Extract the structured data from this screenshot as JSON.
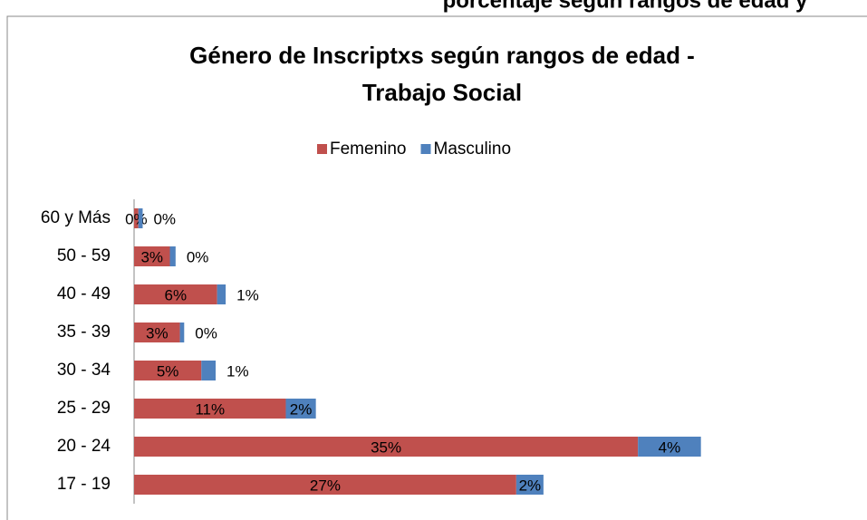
{
  "header_fragment": "porcentaje según rangos de edad y",
  "chart_data": {
    "type": "stacked-barh",
    "title": [
      "Género de Inscriptxs según rangos de edad -",
      "Trabajo Social"
    ],
    "categories": [
      "60 y Más",
      "50 - 59",
      "40 - 49",
      "35 - 39",
      "30 - 34",
      "25 - 29",
      "20 - 24",
      "17 - 19"
    ],
    "series": [
      {
        "name": "Femenino",
        "color": "#c0504d",
        "values": [
          0.3,
          2.5,
          5.8,
          3.2,
          4.7,
          10.6,
          35.2,
          26.7
        ],
        "value_labels": [
          "0%",
          "3%",
          "6%",
          "3%",
          "5%",
          "11%",
          "35%",
          "27%"
        ]
      },
      {
        "name": "Masculino",
        "color": "#4f81bd",
        "values": [
          0.3,
          0.4,
          0.6,
          0.3,
          1.0,
          2.1,
          4.4,
          1.9
        ],
        "value_labels": [
          "0%",
          "0%",
          "1%",
          "0%",
          "1%",
          "2%",
          "4%",
          "2%"
        ]
      }
    ],
    "xlim": [
      0,
      40
    ],
    "legend": "top"
  }
}
